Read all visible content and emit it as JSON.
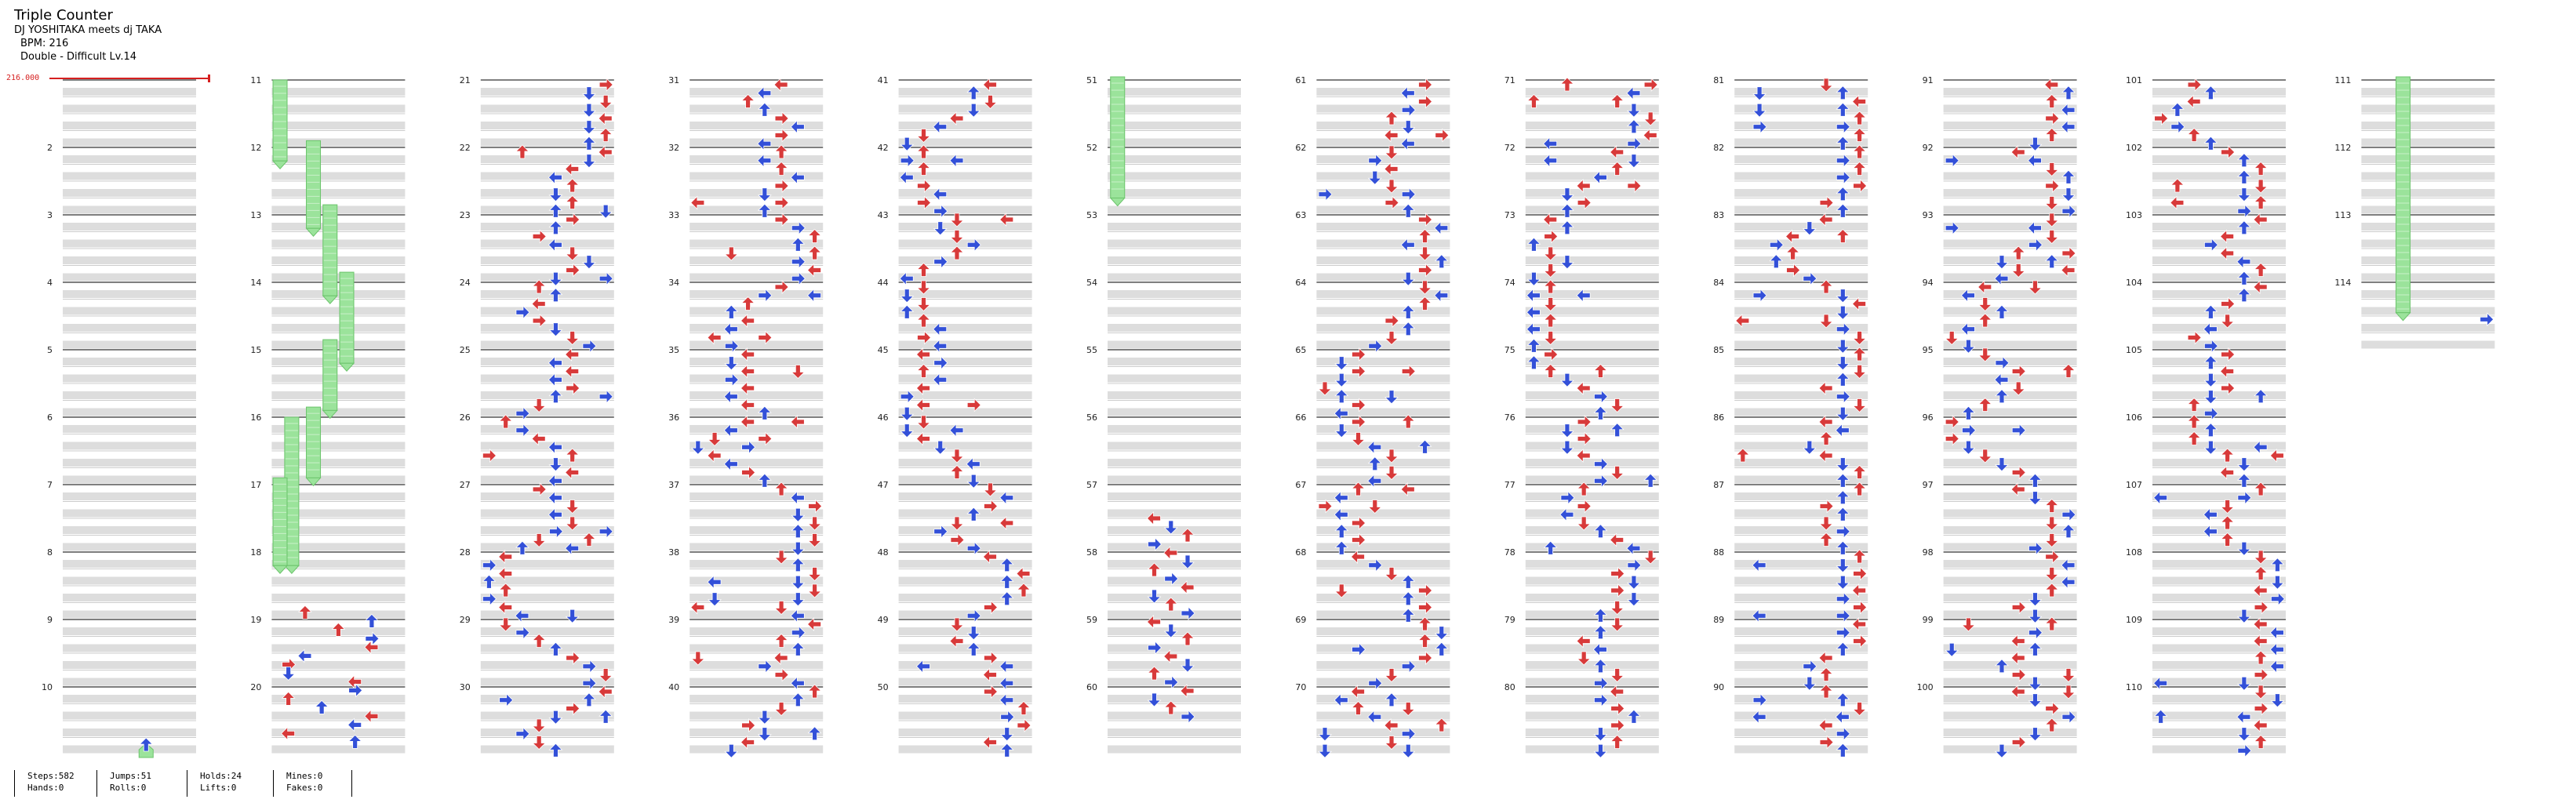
{
  "header": {
    "title": "Triple Counter",
    "artist": "DJ YOSHITAKA meets dj TAKA",
    "bpm": "BPM: 216",
    "difficulty": "Double - Difficult  Lv.14"
  },
  "bpm_marker": "216.000",
  "colors": {
    "quarter_arrow": "#d83a3a",
    "eighth_arrow": "#3350d8",
    "hold_body": "#9be39b",
    "hold_border": "#6cc46c",
    "beat_band": "#dddddd",
    "measure_line": "#333333",
    "bpm_marker": "#d62020"
  },
  "measure_numbers": [
    "2",
    "3",
    "4",
    "5",
    "6",
    "7",
    "8",
    "9",
    "10",
    "11",
    "12",
    "13",
    "14",
    "15",
    "16",
    "17",
    "18",
    "19",
    "20",
    "21",
    "22",
    "23",
    "24",
    "25",
    "26",
    "27",
    "28",
    "29",
    "30",
    "31",
    "32",
    "33",
    "34",
    "35",
    "36",
    "37",
    "38",
    "39",
    "40",
    "41",
    "42",
    "43",
    "44",
    "45",
    "46",
    "47",
    "48",
    "49",
    "50",
    "51",
    "52",
    "53",
    "54",
    "55",
    "56",
    "57",
    "58",
    "59",
    "60",
    "61",
    "62",
    "63",
    "64",
    "65",
    "66",
    "67",
    "68",
    "69",
    "70",
    "71",
    "72",
    "73",
    "74",
    "75",
    "76",
    "77",
    "78",
    "79",
    "80",
    "81",
    "82",
    "83",
    "84",
    "85",
    "86",
    "87",
    "88",
    "89",
    "90",
    "91",
    "92",
    "93",
    "94",
    "95",
    "96",
    "97",
    "98",
    "99",
    "100",
    "101",
    "102",
    "103",
    "104",
    "105",
    "106",
    "107",
    "108",
    "109",
    "110",
    "111",
    "112",
    "113",
    "114"
  ],
  "note_icons": {
    "left": "left-arrow-icon",
    "down": "down-arrow-icon",
    "up": "up-arrow-icon",
    "right": "right-arrow-icon",
    "hold": "hold-note-icon"
  },
  "stats": {
    "steps": "Steps:582",
    "hands": "Hands:0",
    "jumps": "Jumps:51",
    "rolls": "Rolls:0",
    "holds": "Holds:24",
    "lifts": "Lifts:0",
    "mines": "Mines:0",
    "fakes": "Fakes:0"
  }
}
